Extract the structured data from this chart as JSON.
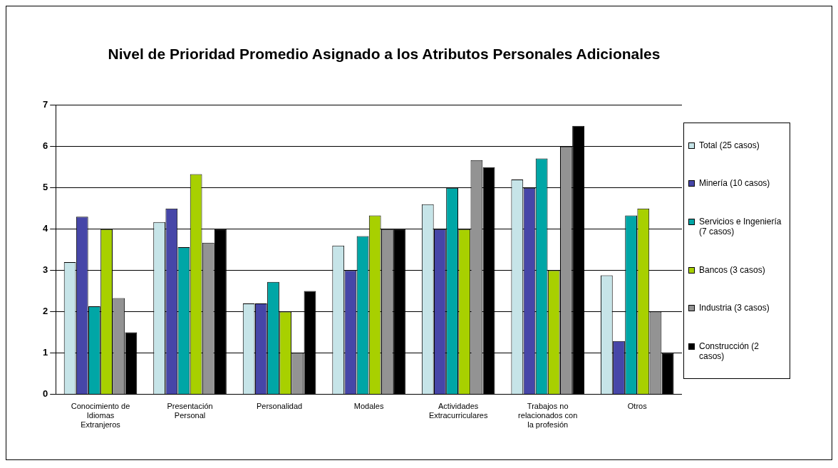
{
  "chart_data": {
    "type": "bar",
    "title": "Nivel de Prioridad Promedio Asignado a los Atributos Personales Adicionales",
    "categories": [
      "Conocimiento de Idiomas Extranjeros",
      "Presentación Personal",
      "Personalidad",
      "Modales",
      "Actividades Extracurriculares",
      "Trabajos no relacionados con la profesión",
      "Otros"
    ],
    "series": [
      {
        "name": "Total (25 casos)",
        "color": "#c6e4e8",
        "values": [
          3.2,
          4.17,
          2.2,
          3.6,
          4.6,
          5.2,
          2.88
        ]
      },
      {
        "name": "Minería (10 casos)",
        "color": "#4646a8",
        "values": [
          4.3,
          4.5,
          2.2,
          3.0,
          4.0,
          5.0,
          1.29
        ]
      },
      {
        "name": "Servicios e Ingeniería (7 casos)",
        "color": "#00a6a6",
        "values": [
          2.13,
          3.56,
          2.72,
          3.83,
          5.0,
          5.71,
          4.33
        ]
      },
      {
        "name": "Bancos (3 casos)",
        "color": "#a8d000",
        "values": [
          4.0,
          5.33,
          2.0,
          4.33,
          4.0,
          3.0,
          4.5
        ]
      },
      {
        "name": "Industria (3 casos)",
        "color": "#939393",
        "values": [
          2.33,
          3.67,
          1.0,
          4.0,
          5.67,
          6.0,
          2.0
        ]
      },
      {
        "name": "Construcción (2 casos)",
        "color": "#000000",
        "values": [
          1.5,
          4.0,
          2.5,
          4.0,
          5.5,
          6.5,
          1.0
        ]
      }
    ],
    "ylim": [
      0,
      7
    ],
    "yticks": [
      0,
      1,
      2,
      3,
      4,
      5,
      6,
      7
    ],
    "grid": "y",
    "legend": "right"
  }
}
